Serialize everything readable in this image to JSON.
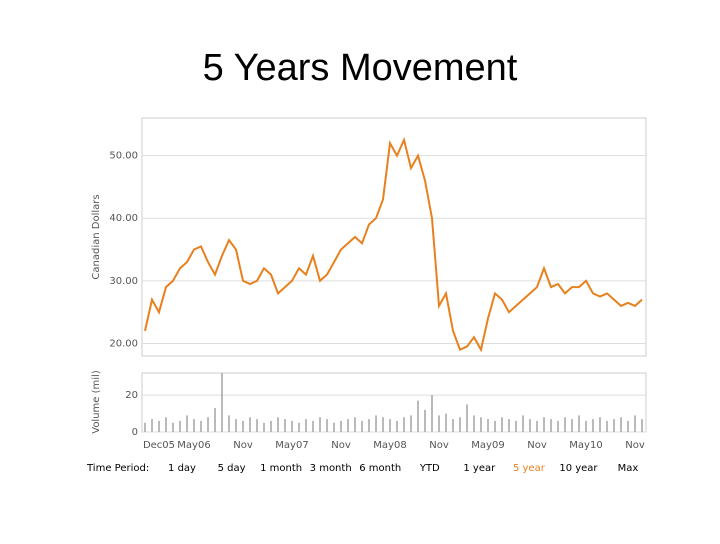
{
  "title": "5 Years Movement",
  "chart_data": [
    {
      "type": "line",
      "y_label": "Canadian Dollars",
      "color": "#e8801e",
      "grid": true,
      "ylim": [
        18,
        56
      ],
      "yticks": [
        {
          "value": 20,
          "label": "20.00"
        },
        {
          "value": 30,
          "label": "30.00"
        },
        {
          "value": 40,
          "label": "40.00"
        },
        {
          "value": 50,
          "label": "50.00"
        }
      ],
      "values": [
        22,
        27,
        25,
        29,
        30,
        32,
        33,
        35,
        35.5,
        33,
        31,
        34,
        36.5,
        35,
        30,
        29.5,
        30,
        32,
        31,
        28,
        29,
        30,
        32,
        31,
        34,
        30,
        31,
        33,
        35,
        36,
        37,
        36,
        39,
        40,
        43,
        52,
        50,
        52.5,
        48,
        50,
        46,
        40,
        26,
        28,
        22,
        19,
        19.5,
        21,
        19,
        24,
        28,
        27,
        25,
        26,
        27,
        28,
        29,
        32,
        29,
        29.5,
        28,
        29,
        29,
        30,
        28,
        27.5,
        28,
        27,
        26,
        26.5,
        26,
        27
      ]
    },
    {
      "type": "bar",
      "y_label": "Volume (mil)",
      "color": "#aaaaaa",
      "grid": true,
      "ylim": [
        0,
        32
      ],
      "yticks": [
        0,
        20
      ],
      "categories": [
        null,
        null,
        "Dec05",
        null,
        null,
        null,
        null,
        "May06",
        null,
        null,
        null,
        null,
        null,
        null,
        "Nov",
        null,
        null,
        null,
        null,
        null,
        null,
        "May07",
        null,
        null,
        null,
        null,
        null,
        null,
        "Nov",
        null,
        null,
        null,
        null,
        null,
        null,
        "May08",
        null,
        null,
        null,
        null,
        null,
        null,
        "Nov",
        null,
        null,
        null,
        null,
        null,
        null,
        "May09",
        null,
        null,
        null,
        null,
        null,
        null,
        "Nov",
        null,
        null,
        null,
        null,
        null,
        null,
        "May10",
        null,
        null,
        null,
        null,
        null,
        null,
        "Nov",
        null
      ],
      "values": [
        5,
        7,
        6,
        8,
        5,
        6,
        9,
        7,
        6,
        8,
        13,
        32,
        9,
        7,
        6,
        8,
        7,
        5,
        6,
        8,
        7,
        6,
        5,
        7,
        6,
        8,
        7,
        5,
        6,
        7,
        8,
        6,
        7,
        9,
        8,
        7,
        6,
        8,
        9,
        17,
        12,
        20,
        9,
        10,
        7,
        8,
        15,
        9,
        8,
        7,
        6,
        8,
        7,
        6,
        9,
        7,
        6,
        8,
        7,
        6,
        8,
        7,
        9,
        6,
        7,
        8,
        6,
        7,
        8,
        6,
        9,
        7
      ]
    }
  ],
  "time_period": {
    "label": "Time Period:",
    "options": [
      "1 day",
      "5 day",
      "1 month",
      "3 month",
      "6 month",
      "YTD",
      "1 year",
      "5 year",
      "10 year",
      "Max"
    ],
    "selected": 7,
    "selected_color": "#e8801e"
  }
}
